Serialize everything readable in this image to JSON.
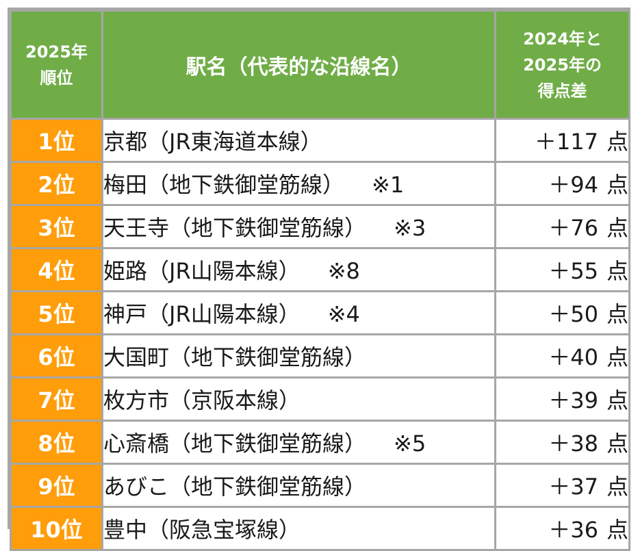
{
  "header": {
    "rank_line1": "2025年",
    "rank_line2": "順位",
    "name": "駅名（代表的な沿線名）",
    "diff_line1": "2024年と",
    "diff_line2": "2025年の",
    "diff_line3": "得点差"
  },
  "unit": "点",
  "colors": {
    "header_bg": "#70ad47",
    "rank_bg": "#ff9d0a",
    "border": "#a6a6a6"
  },
  "rows": [
    {
      "rank": "1位",
      "name": "京都（JR東海道本線）",
      "note": "",
      "diff": "＋117"
    },
    {
      "rank": "2位",
      "name": "梅田（地下鉄御堂筋線）",
      "note": "※1",
      "diff": "＋94"
    },
    {
      "rank": "3位",
      "name": "天王寺（地下鉄御堂筋線）",
      "note": "※3",
      "diff": "＋76"
    },
    {
      "rank": "4位",
      "name": "姫路（JR山陽本線）",
      "note": "※8",
      "diff": "＋55"
    },
    {
      "rank": "5位",
      "name": "神戸（JR山陽本線）",
      "note": "※4",
      "diff": "＋50"
    },
    {
      "rank": "6位",
      "name": "大国町（地下鉄御堂筋線）",
      "note": "",
      "diff": "＋40"
    },
    {
      "rank": "7位",
      "name": "枚方市（京阪本線）",
      "note": "",
      "diff": "＋39"
    },
    {
      "rank": "8位",
      "name": "心斎橋（地下鉄御堂筋線）",
      "note": "※5",
      "diff": "＋38"
    },
    {
      "rank": "9位",
      "name": "あびこ（地下鉄御堂筋線）",
      "note": "",
      "diff": "＋37"
    },
    {
      "rank": "10位",
      "name": "豊中（阪急宝塚線）",
      "note": "",
      "diff": "＋36"
    }
  ]
}
